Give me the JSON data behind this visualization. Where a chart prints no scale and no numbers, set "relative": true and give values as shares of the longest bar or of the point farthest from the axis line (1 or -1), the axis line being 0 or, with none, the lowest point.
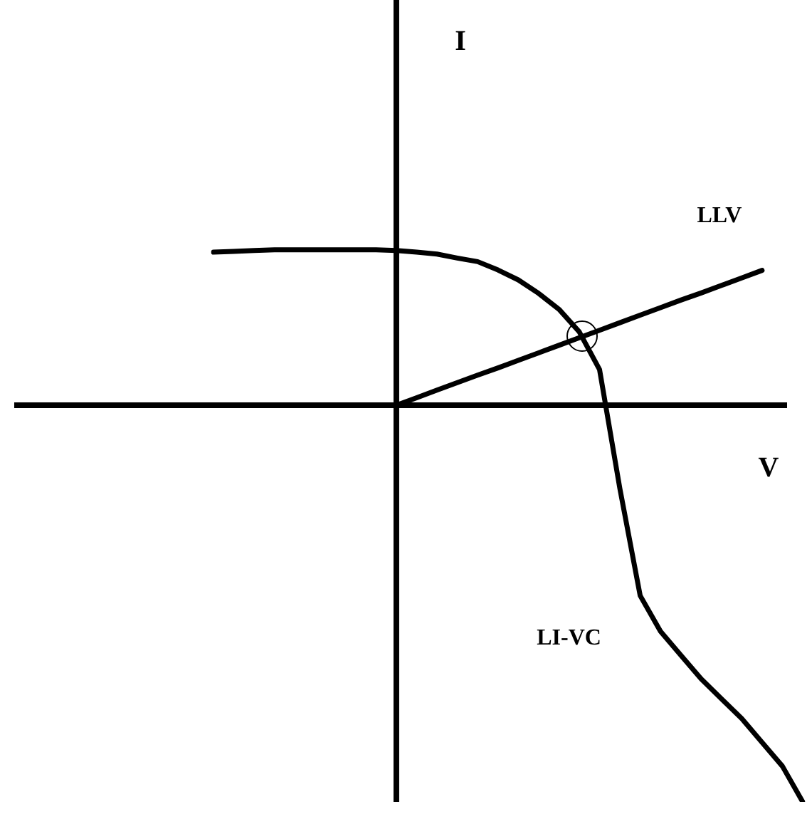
{
  "chart_data": {
    "type": "line",
    "relative": true,
    "xlabel": "V",
    "annotations": [
      "I"
    ],
    "legend": false,
    "marker": "none",
    "line_style": "solid",
    "categories": [
      null,
      null,
      null,
      null,
      null,
      null,
      null,
      null,
      null,
      null,
      null,
      null,
      null,
      null,
      null,
      null,
      null,
      null,
      null,
      null,
      null,
      null,
      null,
      null,
      null,
      null,
      null,
      null,
      null,
      null
    ],
    "series": [
      {
        "name": "LLV",
        "color": "#000000",
        "values": [
          null,
          null,
          null,
          null,
          null,
          null,
          null,
          null,
          null,
          0,
          0.019,
          0.038,
          0.057,
          0.076,
          0.094,
          0.113,
          0.132,
          0.151,
          0.17,
          0.189,
          0.208,
          0.227,
          0.246,
          0.265,
          0.283,
          0.302,
          0.321,
          0.34,
          null,
          null
        ]
      },
      {
        "name": "LI-VC",
        "color": "#000000",
        "values": [
          0.386,
          0.388,
          0.39,
          0.392,
          0.392,
          0.392,
          0.392,
          0.392,
          0.392,
          0.39,
          0.386,
          0.381,
          0.371,
          0.362,
          0.341,
          0.316,
          0.282,
          0.242,
          0.185,
          0.09,
          -0.21,
          -0.48,
          -0.57,
          -0.63,
          -0.69,
          -0.74,
          -0.79,
          -0.85,
          -0.91,
          -1
        ]
      }
    ]
  }
}
